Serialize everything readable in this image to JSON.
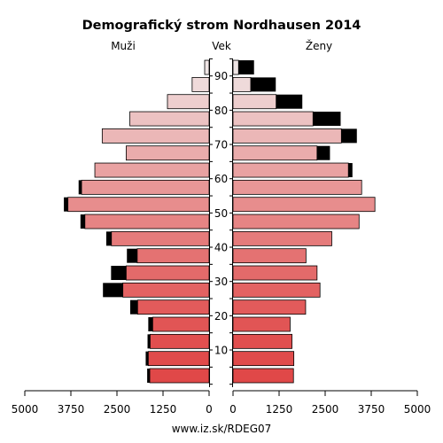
{
  "chart_data": {
    "type": "bar",
    "title": "Demografický strom Nordhausen 2014",
    "left_label": "Muži",
    "center_label": "Vek",
    "right_label": "Ženy",
    "footer": "www.iz.sk/RDEG07",
    "age_ticks": [
      10,
      20,
      30,
      40,
      50,
      60,
      70,
      80,
      90
    ],
    "x_ticks_left": [
      "5000",
      "3750",
      "2500",
      "1250",
      "0"
    ],
    "x_ticks_right": [
      "0",
      "1250",
      "2500",
      "3750",
      "5000"
    ],
    "x_tick_values": [
      0,
      1250,
      2500,
      3750,
      5000
    ],
    "xlim": [
      0,
      5000
    ],
    "age_groups": [
      "0-4",
      "5-9",
      "10-14",
      "15-19",
      "20-24",
      "25-29",
      "30-34",
      "35-39",
      "40-44",
      "45-49",
      "50-54",
      "55-59",
      "60-64",
      "65-69",
      "70-74",
      "75-79",
      "80-84",
      "85-89",
      "90-94"
    ],
    "male": {
      "base": [
        1610,
        1650,
        1600,
        1530,
        1940,
        2340,
        2250,
        1950,
        2650,
        3370,
        3830,
        3460,
        3100,
        2250,
        2900,
        2150,
        1130,
        460,
        120
      ],
      "excess": [
        70,
        70,
        70,
        120,
        200,
        540,
        410,
        280,
        140,
        120,
        110,
        80,
        0,
        0,
        0,
        0,
        0,
        0,
        0
      ]
    },
    "female": {
      "base": [
        1640,
        1650,
        1600,
        1550,
        1970,
        2360,
        2280,
        1980,
        2680,
        3420,
        3850,
        3490,
        3130,
        2280,
        2940,
        2170,
        1170,
        480,
        150
      ],
      "excess": [
        0,
        0,
        0,
        0,
        0,
        0,
        0,
        0,
        0,
        0,
        0,
        0,
        110,
        350,
        420,
        750,
        710,
        680,
        420
      ]
    },
    "colors": {
      "excess": "#000000",
      "bar_stroke": "#000000",
      "youngest": "#e04848",
      "oldest": "#f0e6e6"
    }
  }
}
